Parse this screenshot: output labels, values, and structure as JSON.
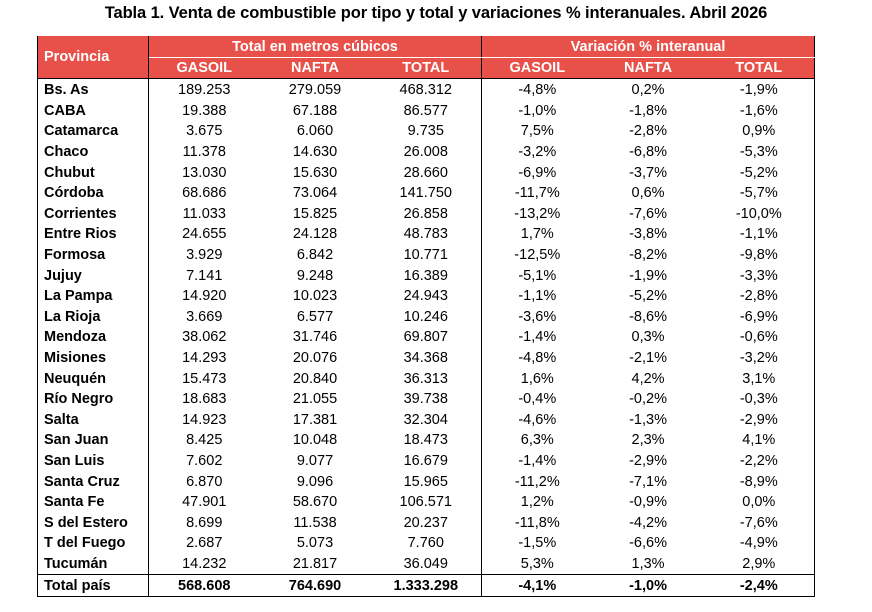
{
  "title": "Tabla 1. Venta de combustible por tipo y total y variaciones % interanuales. Abril 2026",
  "header": {
    "provincia": "Provincia",
    "group_total": "Total en metros cúbicos",
    "group_var": "Variación % interanual",
    "cols": [
      "GASOIL",
      "NAFTA",
      "TOTAL",
      "GASOIL",
      "NAFTA",
      "TOTAL"
    ]
  },
  "rows": [
    {
      "prov": "Bs. As",
      "g": "189.253",
      "n": "279.059",
      "t": "468.312",
      "vg": "-4,8%",
      "vn": "0,2%",
      "vt": "-1,9%"
    },
    {
      "prov": "CABA",
      "g": "19.388",
      "n": "67.188",
      "t": "86.577",
      "vg": "-1,0%",
      "vn": "-1,8%",
      "vt": "-1,6%"
    },
    {
      "prov": "Catamarca",
      "g": "3.675",
      "n": "6.060",
      "t": "9.735",
      "vg": "7,5%",
      "vn": "-2,8%",
      "vt": "0,9%"
    },
    {
      "prov": "Chaco",
      "g": "11.378",
      "n": "14.630",
      "t": "26.008",
      "vg": "-3,2%",
      "vn": "-6,8%",
      "vt": "-5,3%"
    },
    {
      "prov": "Chubut",
      "g": "13.030",
      "n": "15.630",
      "t": "28.660",
      "vg": "-6,9%",
      "vn": "-3,7%",
      "vt": "-5,2%"
    },
    {
      "prov": "Córdoba",
      "g": "68.686",
      "n": "73.064",
      "t": "141.750",
      "vg": "-11,7%",
      "vn": "0,6%",
      "vt": "-5,7%"
    },
    {
      "prov": "Corrientes",
      "g": "11.033",
      "n": "15.825",
      "t": "26.858",
      "vg": "-13,2%",
      "vn": "-7,6%",
      "vt": "-10,0%"
    },
    {
      "prov": "Entre Rios",
      "g": "24.655",
      "n": "24.128",
      "t": "48.783",
      "vg": "1,7%",
      "vn": "-3,8%",
      "vt": "-1,1%"
    },
    {
      "prov": "Formosa",
      "g": "3.929",
      "n": "6.842",
      "t": "10.771",
      "vg": "-12,5%",
      "vn": "-8,2%",
      "vt": "-9,8%"
    },
    {
      "prov": "Jujuy",
      "g": "7.141",
      "n": "9.248",
      "t": "16.389",
      "vg": "-5,1%",
      "vn": "-1,9%",
      "vt": "-3,3%"
    },
    {
      "prov": "La Pampa",
      "g": "14.920",
      "n": "10.023",
      "t": "24.943",
      "vg": "-1,1%",
      "vn": "-5,2%",
      "vt": "-2,8%"
    },
    {
      "prov": "La Rioja",
      "g": "3.669",
      "n": "6.577",
      "t": "10.246",
      "vg": "-3,6%",
      "vn": "-8,6%",
      "vt": "-6,9%"
    },
    {
      "prov": "Mendoza",
      "g": "38.062",
      "n": "31.746",
      "t": "69.807",
      "vg": "-1,4%",
      "vn": "0,3%",
      "vt": "-0,6%"
    },
    {
      "prov": "Misiones",
      "g": "14.293",
      "n": "20.076",
      "t": "34.368",
      "vg": "-4,8%",
      "vn": "-2,1%",
      "vt": "-3,2%"
    },
    {
      "prov": "Neuquén",
      "g": "15.473",
      "n": "20.840",
      "t": "36.313",
      "vg": "1,6%",
      "vn": "4,2%",
      "vt": "3,1%"
    },
    {
      "prov": "Río Negro",
      "g": "18.683",
      "n": "21.055",
      "t": "39.738",
      "vg": "-0,4%",
      "vn": "-0,2%",
      "vt": "-0,3%"
    },
    {
      "prov": "Salta",
      "g": "14.923",
      "n": "17.381",
      "t": "32.304",
      "vg": "-4,6%",
      "vn": "-1,3%",
      "vt": "-2,9%"
    },
    {
      "prov": "San Juan",
      "g": "8.425",
      "n": "10.048",
      "t": "18.473",
      "vg": "6,3%",
      "vn": "2,3%",
      "vt": "4,1%"
    },
    {
      "prov": "San Luis",
      "g": "7.602",
      "n": "9.077",
      "t": "16.679",
      "vg": "-1,4%",
      "vn": "-2,9%",
      "vt": "-2,2%"
    },
    {
      "prov": "Santa Cruz",
      "g": "6.870",
      "n": "9.096",
      "t": "15.965",
      "vg": "-11,2%",
      "vn": "-7,1%",
      "vt": "-8,9%"
    },
    {
      "prov": "Santa Fe",
      "g": "47.901",
      "n": "58.670",
      "t": "106.571",
      "vg": "1,2%",
      "vn": "-0,9%",
      "vt": "0,0%"
    },
    {
      "prov": "S del Estero",
      "g": "8.699",
      "n": "11.538",
      "t": "20.237",
      "vg": "-11,8%",
      "vn": "-4,2%",
      "vt": "-7,6%"
    },
    {
      "prov": "T del Fuego",
      "g": "2.687",
      "n": "5.073",
      "t": "7.760",
      "vg": "-1,5%",
      "vn": "-6,6%",
      "vt": "-4,9%"
    },
    {
      "prov": "Tucumán",
      "g": "14.232",
      "n": "21.817",
      "t": "36.049",
      "vg": "5,3%",
      "vn": "1,3%",
      "vt": "2,9%"
    }
  ],
  "total": {
    "prov": "Total país",
    "g": "568.608",
    "n": "764.690",
    "t": "1.333.298",
    "vg": "-4,1%",
    "vn": "-1,0%",
    "vt": "-2,4%"
  },
  "colors": {
    "header_bg": "#e8504a",
    "header_text": "#ffffff"
  }
}
